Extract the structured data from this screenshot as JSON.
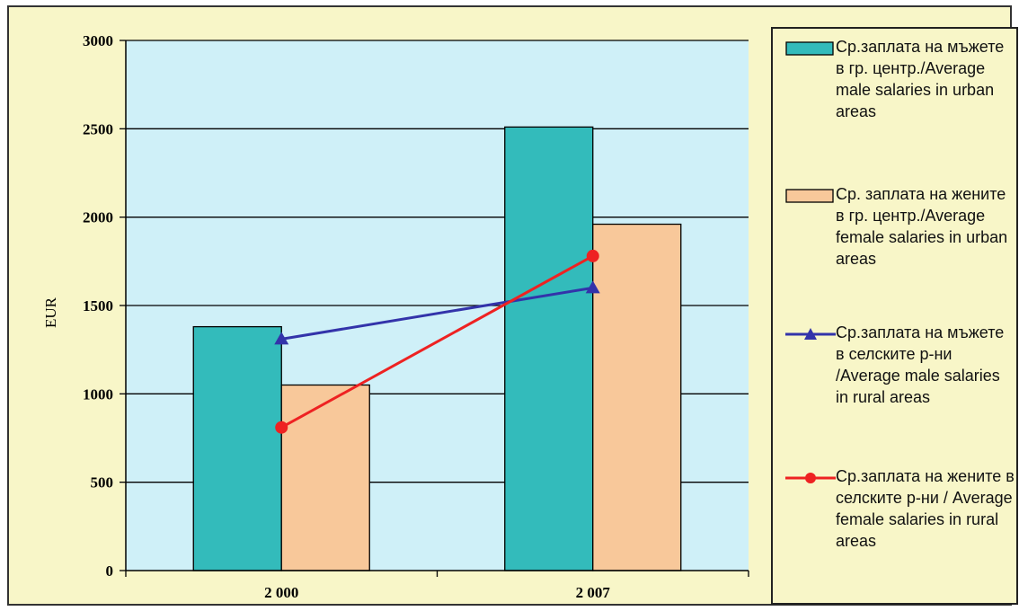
{
  "chart_data": {
    "type": "bar",
    "categories": [
      "2 000",
      "2 007"
    ],
    "ylabel": "EUR",
    "xlabel": "",
    "ylim": [
      0,
      3000
    ],
    "yticks": [
      0,
      500,
      1000,
      1500,
      2000,
      2500,
      3000
    ],
    "grid": true,
    "legend_position": "right",
    "series": [
      {
        "name": "Ср.заплата на мъжете в гр. центр./Average male salaries in urban areas",
        "kind": "bar",
        "color": "#33bbbb",
        "values": [
          1380,
          2510
        ]
      },
      {
        "name": "Ср. заплата на жените в гр. центр./Average female salaries in urban areas",
        "kind": "bar",
        "color": "#f8c89a",
        "values": [
          1050,
          1960
        ]
      },
      {
        "name": "Ср.заплата на мъжете в селските р-ни /Average male salaries in rural areas",
        "kind": "line",
        "marker": "triangle",
        "color": "#3333aa",
        "values": [
          1310,
          1600
        ]
      },
      {
        "name": "Ср.заплата на жените в селските р-ни / Average female salaries in rural areas",
        "kind": "line",
        "marker": "circle",
        "color": "#ee2222",
        "values": [
          810,
          1780
        ]
      }
    ]
  }
}
